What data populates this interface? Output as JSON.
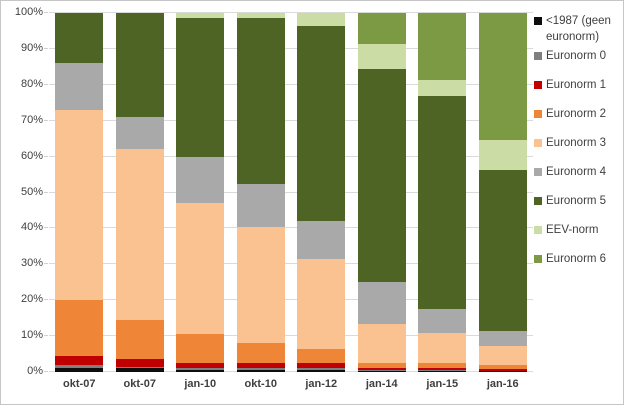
{
  "chart_data": {
    "type": "bar",
    "subtype": "stacked-100-percent",
    "title": "",
    "xlabel": "",
    "ylabel": "",
    "ylim": [
      0,
      100
    ],
    "grid": true,
    "legend_position": "right",
    "y_tick_labels": [
      "0%",
      "10%",
      "20%",
      "30%",
      "40%",
      "50%",
      "60%",
      "70%",
      "80%",
      "90%",
      "100%"
    ],
    "categories": [
      "okt-07",
      "okt-07",
      "jan-10",
      "okt-10",
      "jan-12",
      "jan-14",
      "jan-15",
      "jan-16"
    ],
    "series": [
      {
        "name": "<1987  (geen euronorm)",
        "color": "#0d0d0d",
        "values": [
          1.0,
          1.0,
          0.5,
          0.5,
          0.5,
          0.3,
          0.3,
          0.2
        ]
      },
      {
        "name": "Euronorm 0",
        "color": "#7f7f7f",
        "values": [
          1.0,
          0.5,
          0.7,
          0.5,
          0.5,
          0.2,
          0.2,
          0.2
        ]
      },
      {
        "name": "Euronorm 1",
        "color": "#c00000",
        "values": [
          2.5,
          2.0,
          1.3,
          1.5,
          1.5,
          0.5,
          0.5,
          0.4
        ]
      },
      {
        "name": "Euronorm 2",
        "color": "#ef8637",
        "values": [
          15.5,
          11.0,
          8.0,
          5.5,
          4.0,
          1.5,
          1.5,
          1.2
        ]
      },
      {
        "name": "Euronorm 3",
        "color": "#fac191",
        "values": [
          53.0,
          47.5,
          36.5,
          32.5,
          25.0,
          11.0,
          8.5,
          5.2
        ]
      },
      {
        "name": "Euronorm 4",
        "color": "#a9a9a9",
        "values": [
          13.0,
          9.0,
          13.0,
          12.0,
          10.5,
          11.5,
          6.5,
          4.3
        ]
      },
      {
        "name": "Euronorm 5",
        "color": "#4e6424",
        "values": [
          14.0,
          29.0,
          38.5,
          46.0,
          54.5,
          59.5,
          59.5,
          44.8
        ]
      },
      {
        "name": "EEV-norm",
        "color": "#cbdca4",
        "values": [
          0,
          0,
          1.5,
          1.5,
          3.5,
          7.0,
          4.5,
          8.4
        ]
      },
      {
        "name": "Euronorm 6",
        "color": "#7b9a43",
        "values": [
          0,
          0,
          0,
          0,
          0,
          8.5,
          18.5,
          35.3
        ]
      }
    ]
  }
}
